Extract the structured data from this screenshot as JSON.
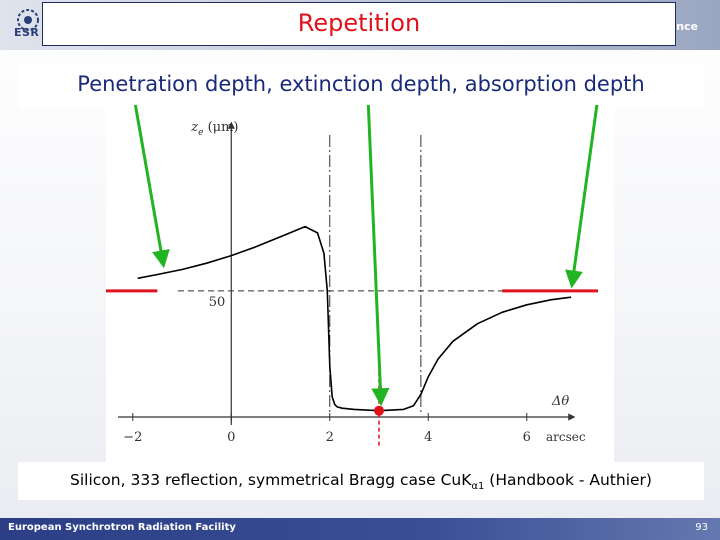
{
  "slide": {
    "logo_text": "ESR",
    "brand_right": "nce",
    "title": "Repetition",
    "subtitle": "Penetration depth, extinction depth, absorption depth",
    "caption_main": "Silicon, 333 reflection, symmetrical Bragg case CuK",
    "caption_sub": "α1",
    "caption_tail": " (Handbook - Authier)",
    "footer_text": "European Synchrotron Radiation Facility",
    "page_number": "93"
  },
  "chart_data": {
    "type": "line",
    "title": "",
    "ylabel_var": "z",
    "ylabel_sub": "e",
    "ylabel_unit": " (μm)",
    "xlabel_var": "Δθ",
    "xlabel_unit": "arcsec",
    "x_ticks": [
      "−2",
      "0",
      "2",
      "4",
      "6"
    ],
    "x_tick_values": [
      -2,
      0,
      2,
      4,
      6
    ],
    "y_ticks": [
      "50"
    ],
    "y_tick_values": [
      50
    ],
    "xlim": [
      -2.3,
      7.0
    ],
    "ylim": [
      0,
      115
    ],
    "series": [
      {
        "values_x": [
          -1.9,
          -1.5,
          -1.0,
          -0.5,
          0.0,
          0.5,
          1.0,
          1.5,
          1.75,
          1.88,
          1.95,
          2.0,
          2.05,
          2.1,
          2.15,
          2.25,
          2.5,
          3.0,
          3.5,
          3.7,
          3.85,
          4.0,
          4.2,
          4.5,
          5.0,
          5.5,
          6.0,
          6.5,
          6.9
        ],
        "values_y": [
          55,
          56.5,
          58.5,
          61,
          64,
          67.5,
          71.5,
          75.5,
          73,
          65,
          50,
          20,
          8,
          5,
          4,
          3.5,
          3,
          2.5,
          3,
          4.5,
          9,
          16,
          23,
          30,
          37,
          41.5,
          44.5,
          46.5,
          47.5
        ]
      }
    ],
    "reference_lines": {
      "dashed_horizontal_y": 50,
      "dashdot_vertical_x": [
        2.0,
        3.85
      ]
    },
    "markers": {
      "red_dot_point": [
        3.0,
        2.5
      ],
      "red_dashed_vertical_x": 3.0
    },
    "colors": {
      "curve": "#000000",
      "arrow": "#22b422",
      "red_mark": "#e0121b",
      "title": "#e0121b",
      "subtitle": "#1a2a7a"
    }
  }
}
